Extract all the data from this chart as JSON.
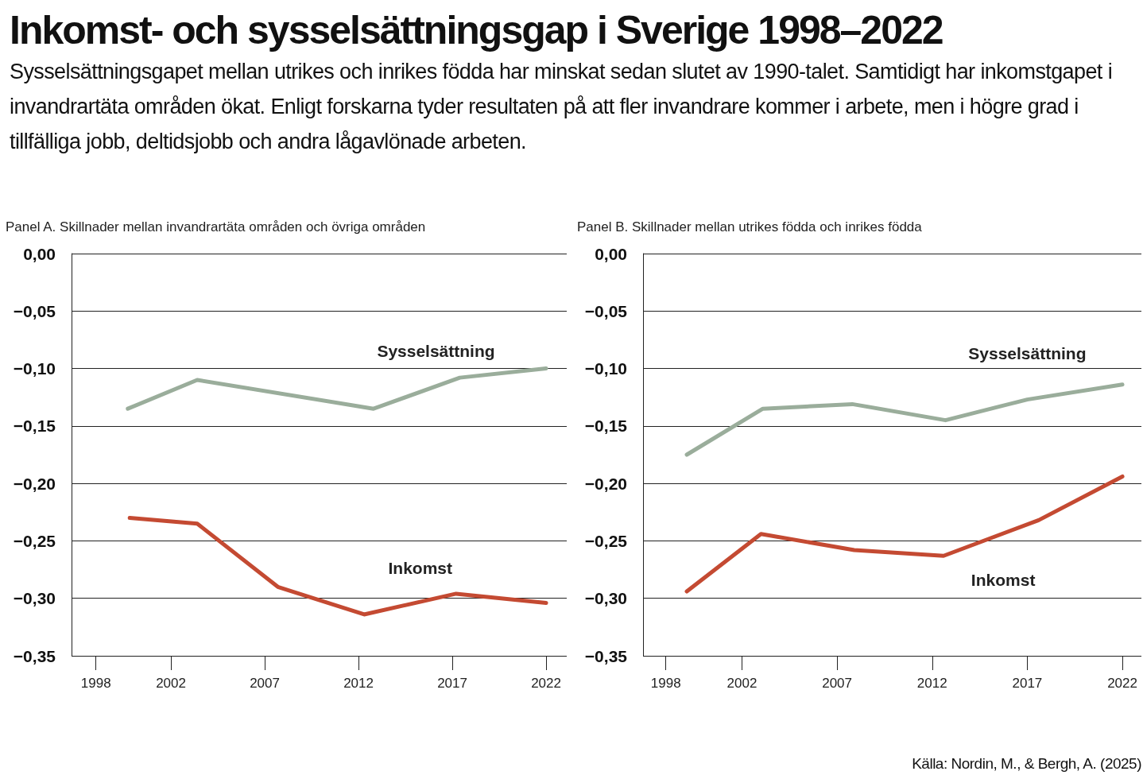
{
  "chart_data": [
    {
      "type": "other",
      "title": "Inkomst- och sysselsättningsgap i Sverige 1998–2022",
      "subtitle": "Sysselsättningsgapet mellan utrikes och inrikes födda har minskat sedan slutet av 1990-talet. Samtidigt har inkomstgapet i invandrartäta områden ökat. Enligt forskarna tyder resultaten på att fler invandrare kommer i arbete, men i högre grad i tillfälliga jobb, deltidsjobb och andra lågavlönade arbeten."
    },
    {
      "type": "line",
      "title": "Panel A. Skillnader mellan invandrartäta områden och övriga områden",
      "xlim": [
        1996.7,
        2023.1
      ],
      "xticks": [
        1998,
        2002,
        2007,
        2012,
        2017,
        2022
      ],
      "ylim": [
        -0.35,
        0
      ],
      "yticks": [
        {
          "value": 0,
          "label": "0,00"
        },
        {
          "value": -0.05,
          "label": "−0,05"
        },
        {
          "value": -0.1,
          "label": "−0,10"
        },
        {
          "value": -0.15,
          "label": "−0,15"
        },
        {
          "value": -0.2,
          "label": "−0,20"
        },
        {
          "value": -0.25,
          "label": "−0,25"
        },
        {
          "value": -0.3,
          "label": "−0,30"
        },
        {
          "value": -0.35,
          "label": "−0,35"
        }
      ],
      "grid": "y",
      "marker": "none",
      "line_style": "solid",
      "legend": false,
      "series": [
        {
          "name": "Sysselsättning",
          "color": "#9aad9b",
          "x": [
            1999.7,
            2003.4,
            2012.8,
            2017.4,
            2022
          ],
          "values": [
            -0.135,
            -0.11,
            -0.135,
            -0.108,
            -0.1
          ]
        },
        {
          "name": "Inkomst",
          "color": "#c44a32",
          "x": [
            1999.8,
            2003.4,
            2007.7,
            2012.3,
            2017.2,
            2022
          ],
          "values": [
            -0.23,
            -0.235,
            -0.29,
            -0.314,
            -0.296,
            -0.304
          ]
        }
      ]
    },
    {
      "type": "line",
      "title": "Panel B. Skillnader mellan utrikes födda och inrikes födda",
      "xlim": [
        1996.8,
        2023
      ],
      "xticks": [
        1998,
        2002,
        2007,
        2012,
        2017,
        2022
      ],
      "ylim": [
        -0.35,
        0
      ],
      "yticks": [
        {
          "value": 0,
          "label": "0,00"
        },
        {
          "value": -0.05,
          "label": "−0,05"
        },
        {
          "value": -0.1,
          "label": "−0,10"
        },
        {
          "value": -0.15,
          "label": "−0,15"
        },
        {
          "value": -0.2,
          "label": "−0,20"
        },
        {
          "value": -0.25,
          "label": "−0,25"
        },
        {
          "value": -0.3,
          "label": "−0,30"
        },
        {
          "value": -0.35,
          "label": "−0,35"
        }
      ],
      "grid": "y",
      "marker": "none",
      "line_style": "solid",
      "legend": false,
      "annotations": [
        "Källa: Nordin, M., & Bergh, A. (2025)"
      ],
      "series": [
        {
          "name": "Sysselsättning",
          "color": "#9aad9b",
          "x": [
            1999.1,
            2003.1,
            2007.8,
            2012.7,
            2017,
            2022
          ],
          "values": [
            -0.175,
            -0.135,
            -0.131,
            -0.145,
            -0.127,
            -0.114
          ]
        },
        {
          "name": "Inkomst",
          "color": "#c44a32",
          "x": [
            1999.1,
            2003,
            2007.9,
            2012.6,
            2017.6,
            2022
          ],
          "values": [
            -0.294,
            -0.244,
            -0.258,
            -0.263,
            -0.232,
            -0.194
          ]
        }
      ]
    }
  ]
}
